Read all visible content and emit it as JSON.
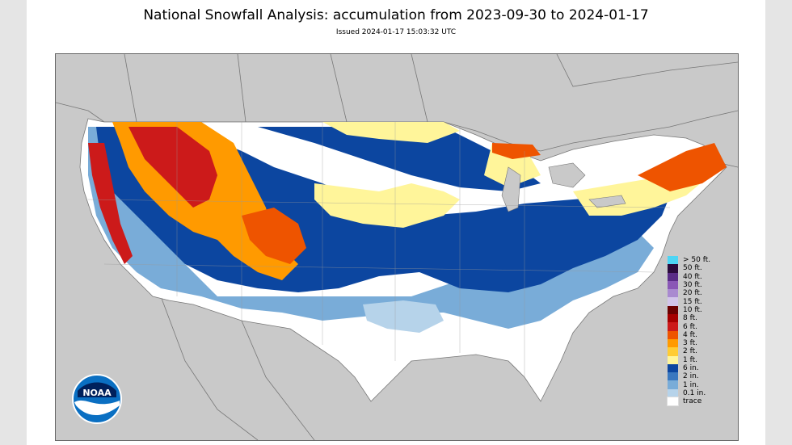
{
  "header": {
    "title": "National Snowfall Analysis: accumulation from 2023-09-30 to 2024-01-17",
    "issued": "Issued 2024-01-17 15:03:32 UTC"
  },
  "logo": {
    "text": "NOAA",
    "icon": "noaa-logo"
  },
  "colors": {
    "land_outside": "#c9c9c9",
    "borders": "#777777",
    "no_snow": "#ffffff"
  },
  "legend": [
    {
      "label": "> 50 ft.",
      "color": "#4dd5f5"
    },
    {
      "label": "50 ft.",
      "color": "#2b0a3d"
    },
    {
      "label": "40 ft.",
      "color": "#5a2c87"
    },
    {
      "label": "30 ft.",
      "color": "#8a58b6"
    },
    {
      "label": "20 ft.",
      "color": "#a98ad0"
    },
    {
      "label": "15 ft.",
      "color": "#d2c5ea"
    },
    {
      "label": "10 ft.",
      "color": "#6b0000"
    },
    {
      "label": "8 ft.",
      "color": "#a60000"
    },
    {
      "label": "6 ft.",
      "color": "#cc1a1a"
    },
    {
      "label": "4 ft.",
      "color": "#ee5400"
    },
    {
      "label": "3 ft.",
      "color": "#ff9a00"
    },
    {
      "label": "2 ft.",
      "color": "#ffcc33"
    },
    {
      "label": "1 ft.",
      "color": "#fff59a"
    },
    {
      "label": "6 in.",
      "color": "#0c46a0"
    },
    {
      "label": "2 in.",
      "color": "#3a78c0"
    },
    {
      "label": "1 in.",
      "color": "#79acd8"
    },
    {
      "label": "0.1 in.",
      "color": "#b6d3ea"
    },
    {
      "label": "trace",
      "color": "#ffffff"
    }
  ]
}
